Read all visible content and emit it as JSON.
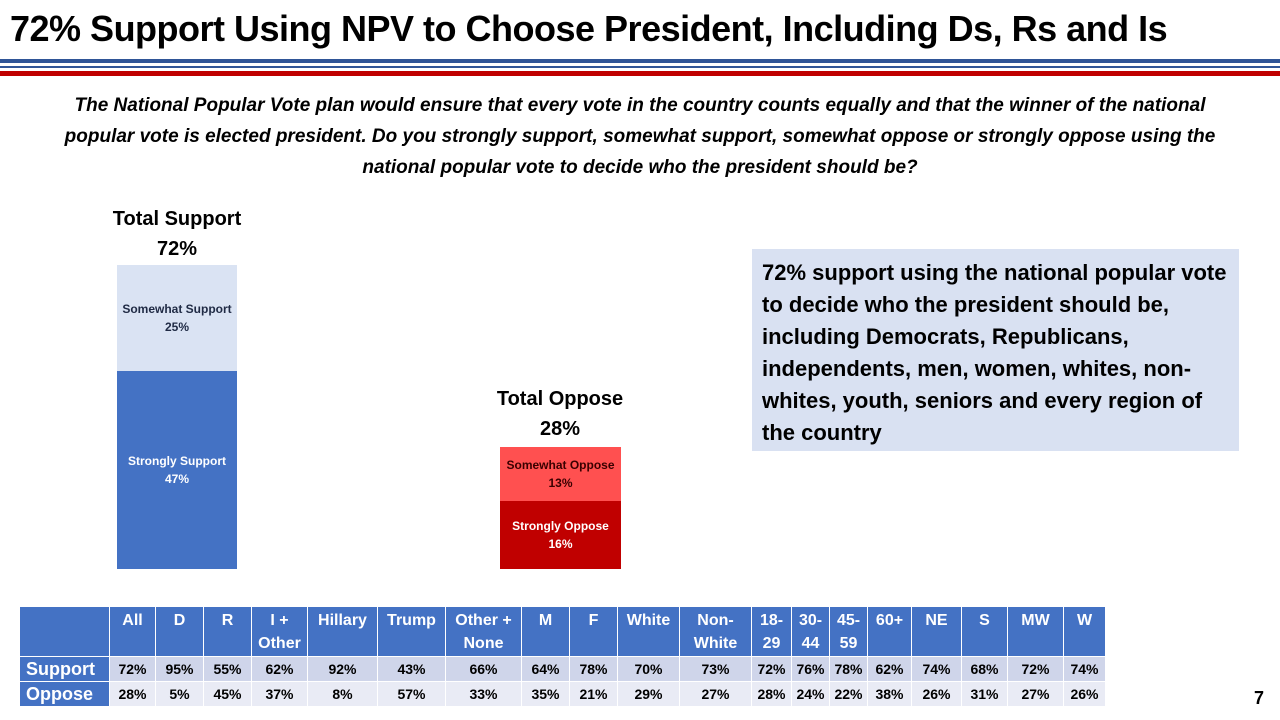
{
  "header": {
    "title": "72% Support Using NPV to Choose President, Including Ds, Rs and Is",
    "rule_colors": [
      "#2f5597",
      "#c00000"
    ]
  },
  "question": "The National Popular Vote plan would ensure that every vote in the country counts equally and that the winner of the national popular vote is elected president. Do you strongly support, somewhat support, somewhat oppose or strongly oppose using the national popular vote to decide who the president should be?",
  "chart_data": {
    "type": "bar",
    "stacked": true,
    "unit": "%",
    "groups": [
      {
        "label": "Total Support",
        "total_label": "72%",
        "total": 72,
        "segments": [
          {
            "name": "Strongly Support",
            "value": 47,
            "value_label": "47%",
            "color": "#4472c4",
            "text_color": "#ffffff"
          },
          {
            "name": "Somewhat Support",
            "value": 25,
            "value_label": "25%",
            "color": "#dae3f3",
            "text_color": "#1f2a44"
          }
        ]
      },
      {
        "label": "Total Oppose",
        "total_label": "28%",
        "total": 28,
        "segments": [
          {
            "name": "Strongly Oppose",
            "value": 16,
            "value_label": "16%",
            "color": "#c00000",
            "text_color": "#ffffff"
          },
          {
            "name": "Somewhat Oppose",
            "value": 13,
            "value_label": "13%",
            "color": "#ff5050",
            "text_color": "#3a0000"
          }
        ]
      }
    ]
  },
  "callout": "72% support using the national popular vote to decide who the president should be, including Democrats, Republicans, independents, men, women, whites, non-whites, youth, seniors and every region of the country",
  "table": {
    "columns": [
      "All",
      "D",
      "R",
      "I + Other",
      "Hillary",
      "Trump",
      "Other + None",
      "M",
      "F",
      "White",
      "Non-White",
      "18-29",
      "30-44",
      "45-59",
      "60+",
      "NE",
      "S",
      "MW",
      "W"
    ],
    "rows": [
      {
        "label": "Support",
        "values": [
          "72%",
          "95%",
          "55%",
          "62%",
          "92%",
          "43%",
          "66%",
          "64%",
          "78%",
          "70%",
          "73%",
          "72%",
          "76%",
          "78%",
          "62%",
          "74%",
          "68%",
          "72%",
          "74%"
        ]
      },
      {
        "label": "Oppose",
        "values": [
          "28%",
          "5%",
          "45%",
          "37%",
          "8%",
          "57%",
          "33%",
          "35%",
          "21%",
          "29%",
          "27%",
          "28%",
          "24%",
          "22%",
          "38%",
          "26%",
          "31%",
          "27%",
          "26%"
        ]
      }
    ]
  },
  "page_number": "7"
}
